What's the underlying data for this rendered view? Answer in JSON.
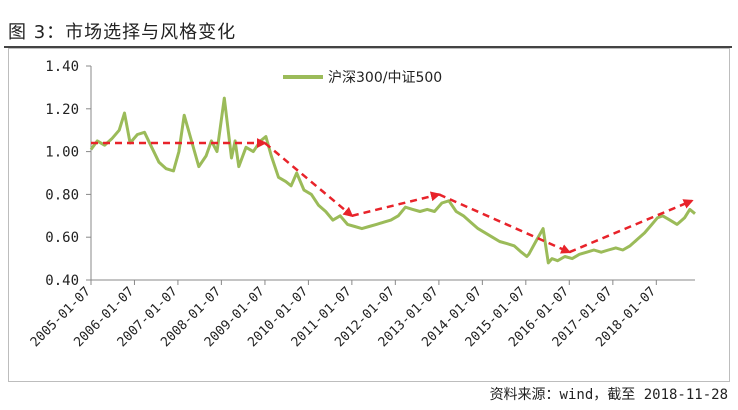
{
  "figure": {
    "title": "图 3：市场选择与风格变化",
    "source": "资料来源：wind，截至 2018-11-28"
  },
  "chart_data": {
    "type": "line",
    "ylim": [
      0.4,
      1.4
    ],
    "yticks": [
      "0.40",
      "0.60",
      "0.80",
      "1.00",
      "1.20",
      "1.40"
    ],
    "xlim": [
      "2005-01-07",
      "2018-11-28"
    ],
    "xticks": [
      "2005-01-07",
      "2006-01-07",
      "2007-01-07",
      "2008-01-07",
      "2009-01-07",
      "2010-01-07",
      "2011-01-07",
      "2012-01-07",
      "2013-01-07",
      "2014-01-07",
      "2015-01-07",
      "2016-01-07",
      "2017-01-07",
      "2018-01-07"
    ],
    "grid": false,
    "legend_position": "top-center",
    "series": [
      {
        "name": "沪深300/中证500",
        "color": "#9bbb59",
        "x": [
          "2005-01-07",
          "2005-03-01",
          "2005-05-01",
          "2005-07-01",
          "2005-09-01",
          "2005-10-15",
          "2005-12-01",
          "2006-02-01",
          "2006-04-01",
          "2006-06-01",
          "2006-08-01",
          "2006-10-01",
          "2006-12-01",
          "2007-01-15",
          "2007-03-01",
          "2007-05-01",
          "2007-07-01",
          "2007-09-01",
          "2007-10-15",
          "2007-12-01",
          "2008-02-01",
          "2008-04-01",
          "2008-05-01",
          "2008-06-01",
          "2008-08-01",
          "2008-10-01",
          "2008-12-01",
          "2009-01-15",
          "2009-03-01",
          "2009-05-01",
          "2009-07-01",
          "2009-08-15",
          "2009-10-01",
          "2009-12-01",
          "2010-02-01",
          "2010-04-01",
          "2010-06-01",
          "2010-08-01",
          "2010-10-01",
          "2010-12-01",
          "2011-02-01",
          "2011-04-01",
          "2011-06-01",
          "2011-08-01",
          "2011-10-01",
          "2011-12-01",
          "2012-02-01",
          "2012-04-01",
          "2012-06-01",
          "2012-08-01",
          "2012-10-01",
          "2012-12-01",
          "2013-02-01",
          "2013-04-01",
          "2013-06-01",
          "2013-08-01",
          "2013-10-01",
          "2013-12-01",
          "2014-02-01",
          "2014-04-01",
          "2014-06-01",
          "2014-08-01",
          "2014-10-01",
          "2014-12-01",
          "2015-01-15",
          "2015-02-01",
          "2015-04-01",
          "2015-06-01",
          "2015-07-15",
          "2015-08-15",
          "2015-10-01",
          "2015-12-01",
          "2016-02-01",
          "2016-04-01",
          "2016-06-01",
          "2016-08-01",
          "2016-10-01",
          "2016-12-01",
          "2017-02-01",
          "2017-04-01",
          "2017-06-01",
          "2017-08-01",
          "2017-10-01",
          "2017-12-01",
          "2018-01-15",
          "2018-03-01",
          "2018-05-01",
          "2018-07-01",
          "2018-09-01",
          "2018-10-15",
          "2018-11-28"
        ],
        "y": [
          1.01,
          1.05,
          1.03,
          1.06,
          1.1,
          1.18,
          1.04,
          1.08,
          1.09,
          1.02,
          0.95,
          0.92,
          0.91,
          1.0,
          1.17,
          1.05,
          0.93,
          0.98,
          1.05,
          1.0,
          1.25,
          0.97,
          1.05,
          0.93,
          1.02,
          1.0,
          1.05,
          1.07,
          0.98,
          0.88,
          0.86,
          0.84,
          0.9,
          0.82,
          0.8,
          0.75,
          0.72,
          0.68,
          0.7,
          0.66,
          0.65,
          0.64,
          0.65,
          0.66,
          0.67,
          0.68,
          0.7,
          0.74,
          0.73,
          0.72,
          0.73,
          0.72,
          0.76,
          0.77,
          0.72,
          0.7,
          0.67,
          0.64,
          0.62,
          0.6,
          0.58,
          0.57,
          0.56,
          0.53,
          0.51,
          0.52,
          0.58,
          0.64,
          0.48,
          0.5,
          0.49,
          0.51,
          0.5,
          0.52,
          0.53,
          0.54,
          0.53,
          0.54,
          0.55,
          0.54,
          0.56,
          0.59,
          0.62,
          0.66,
          0.69,
          0.7,
          0.68,
          0.66,
          0.69,
          0.73,
          0.71
        ]
      }
    ],
    "trend_arrows": {
      "color": "#e8232a",
      "segments": [
        {
          "x": [
            "2005-01-07",
            "2009-01-07"
          ],
          "y": [
            1.04,
            1.04
          ]
        },
        {
          "x": [
            "2009-01-07",
            "2011-01-07"
          ],
          "y": [
            1.04,
            0.7
          ]
        },
        {
          "x": [
            "2011-01-07",
            "2013-01-07"
          ],
          "y": [
            0.7,
            0.8
          ]
        },
        {
          "x": [
            "2013-01-07",
            "2016-01-07"
          ],
          "y": [
            0.8,
            0.53
          ]
        },
        {
          "x": [
            "2016-01-07",
            "2018-11-01"
          ],
          "y": [
            0.53,
            0.77
          ]
        }
      ]
    }
  }
}
